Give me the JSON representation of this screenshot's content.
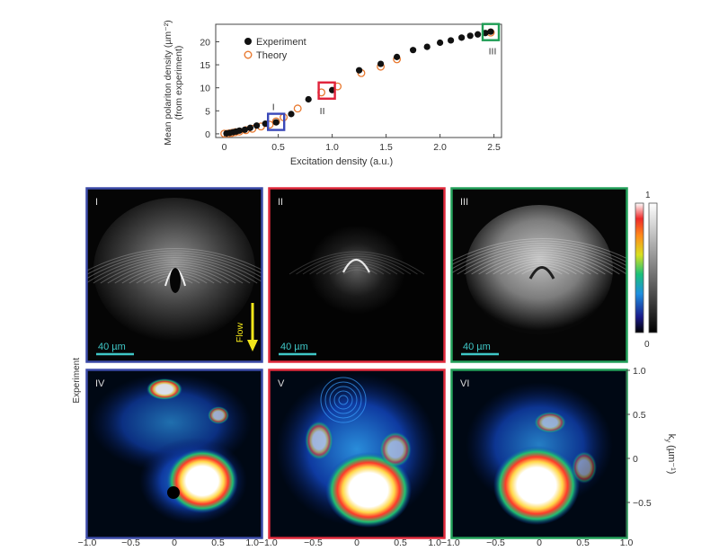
{
  "chart_data": {
    "type": "scatter",
    "ylabel": "Mean polariton density (µm⁻²)",
    "ylabel2": "(from experiment)",
    "xlabel": "Excitation density (a.u.)",
    "xlim": [
      -0.08,
      2.57
    ],
    "ylim": [
      -0.8,
      23.8
    ],
    "xticks": [
      "0",
      "0.5",
      "1.0",
      "1.5",
      "2.0",
      "2.5"
    ],
    "yticks": [
      "0",
      "5",
      "10",
      "15",
      "20"
    ],
    "legend_position": "top-left",
    "series": [
      {
        "name": "Experiment",
        "color": "#111111",
        "marker": "filled-circle",
        "x": [
          0.02,
          0.05,
          0.08,
          0.11,
          0.14,
          0.19,
          0.24,
          0.3,
          0.38,
          0.48,
          0.62,
          0.78,
          1.0,
          1.25,
          1.45,
          1.6,
          1.75,
          1.88,
          2.0,
          2.1,
          2.2,
          2.28,
          2.35,
          2.42,
          2.47
        ],
        "y": [
          0.1,
          0.2,
          0.35,
          0.5,
          0.7,
          0.9,
          1.3,
          1.8,
          2.2,
          2.5,
          4.3,
          7.5,
          9.5,
          13.8,
          15.2,
          16.7,
          18.2,
          18.9,
          19.8,
          20.3,
          20.9,
          21.3,
          21.6,
          21.9,
          22.2
        ]
      },
      {
        "name": "Theory",
        "color": "#e8782e",
        "marker": "open-circle",
        "x": [
          0.0,
          0.04,
          0.07,
          0.1,
          0.14,
          0.2,
          0.26,
          0.34,
          0.42,
          0.48,
          0.55,
          0.68,
          0.9,
          1.05,
          1.27,
          1.45,
          1.6,
          2.47
        ],
        "y": [
          0.05,
          0.1,
          0.2,
          0.35,
          0.5,
          0.8,
          1.1,
          1.6,
          2.0,
          2.7,
          3.6,
          5.5,
          9.0,
          10.3,
          13.2,
          14.6,
          16.2,
          22.0
        ]
      }
    ],
    "annotations": [
      {
        "label": "I",
        "x": 0.48,
        "y": 2.6,
        "color": "#3a48b8"
      },
      {
        "label": "II",
        "x": 0.95,
        "y": 9.4,
        "color": "#e0223a"
      },
      {
        "label": "III",
        "x": 2.47,
        "y": 22.1,
        "color": "#1f9d55"
      }
    ]
  },
  "panels": {
    "top_row": [
      {
        "label": "I",
        "color": "#3b4aa8",
        "scale": "40 µm"
      },
      {
        "label": "II",
        "color": "#e12a3c",
        "scale": "40 µm"
      },
      {
        "label": "III",
        "color": "#22a05a",
        "scale": "40 µm"
      }
    ],
    "bottom_row": [
      {
        "label": "IV",
        "color": "#3b4aa8"
      },
      {
        "label": "V",
        "color": "#e12a3c"
      },
      {
        "label": "VI",
        "color": "#22a05a"
      }
    ],
    "flow_label": "Flow",
    "row_label": "Experiment",
    "colorbar": {
      "max": "1",
      "min": "0"
    },
    "ky_axis": {
      "label": "k",
      "label_sub": "y",
      "label_unit": "(µm⁻¹)",
      "ticks": [
        "1.0",
        "0.5",
        "0",
        "−0.5"
      ]
    },
    "kx_ticks": [
      "−1.0",
      "−0.5",
      "0",
      "0.5",
      "1.0"
    ]
  }
}
